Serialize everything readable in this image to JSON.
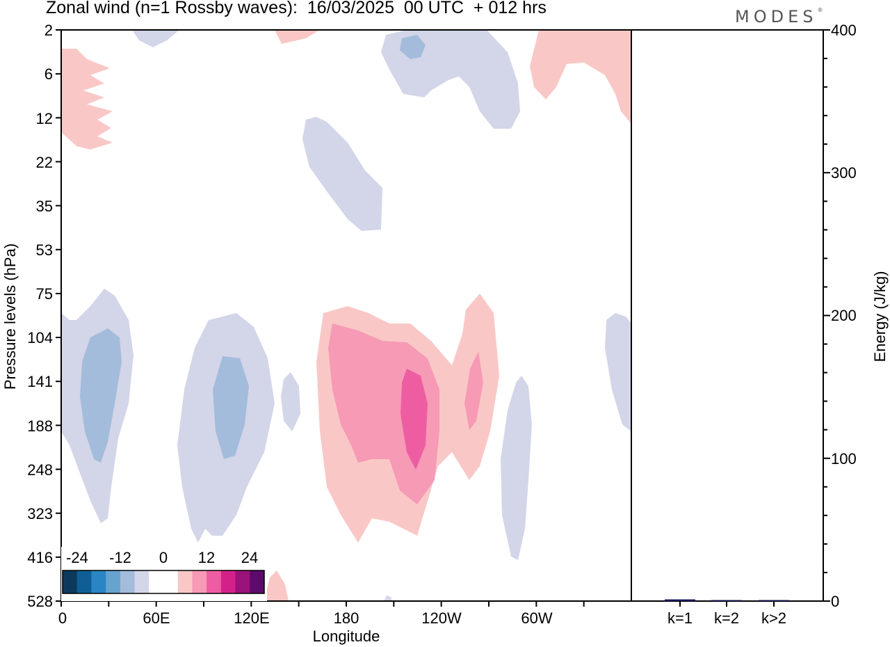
{
  "title": "Zonal wind (n=1 Rossby waves):  16/03/2025  00 UTC  + 012 hrs",
  "brand": "MODES",
  "chart_data": [
    {
      "type": "heatmap",
      "title": "Zonal wind (n=1 Rossby waves):  16/03/2025  00 UTC  + 012 hrs",
      "xlabel": "Longitude",
      "ylabel": "Pressure levels (hPa)",
      "x_tick_labels": [
        "0",
        "60E",
        "120E",
        "180",
        "120W",
        "60W"
      ],
      "y_tick_labels": [
        "2",
        "6",
        "12",
        "22",
        "35",
        "53",
        "75",
        "104",
        "141",
        "188",
        "248",
        "323",
        "416",
        "528"
      ],
      "colorbar": {
        "tick_labels": [
          "-24",
          "-12",
          "0",
          "12",
          "24"
        ],
        "colors": [
          "#0d3a5c",
          "#0f5f96",
          "#2a85c2",
          "#66a3cf",
          "#a3bcdc",
          "#d3d5e8",
          "#ffffff",
          "#ffffff",
          "#f9c8c6",
          "#f69ab5",
          "#ee5da2",
          "#d4218a",
          "#9b127a",
          "#5c0a6c"
        ]
      },
      "features": [
        {
          "sign": "negative",
          "center_lon": 35,
          "center_level": "141",
          "max_abs": 8
        },
        {
          "sign": "negative",
          "center_lon": 100,
          "center_level": "141",
          "max_abs": 8
        },
        {
          "sign": "positive",
          "center_lon": 210,
          "center_level": "141",
          "max_abs": 14
        },
        {
          "sign": "negative",
          "center_lon": 225,
          "center_level": "2",
          "max_abs": 8
        }
      ]
    },
    {
      "type": "bar",
      "categories": [
        "k=1",
        "k=2",
        "k>2"
      ],
      "values": [
        1.2,
        0.5,
        0.6
      ],
      "ylabel": "Energy (J/kg)",
      "ylim": [
        0,
        400
      ],
      "y_tick_labels": [
        "0",
        "100",
        "200",
        "300",
        "400"
      ],
      "bar_color": "#1a1a5e"
    }
  ]
}
